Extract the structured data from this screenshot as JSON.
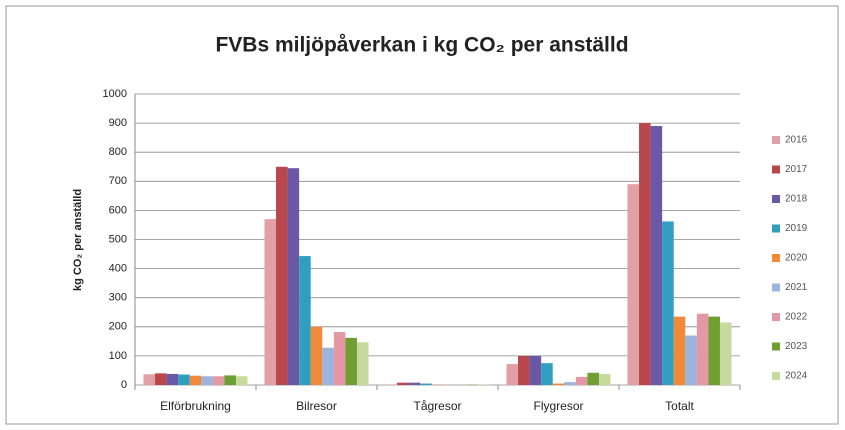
{
  "chart_data": {
    "type": "bar",
    "title": "FVBs miljöpåverkan i kg CO₂ per anställd",
    "y_label": "kg CO₂ per anställd",
    "categories": [
      "Elförbrukning",
      "Bilresor",
      "Tågresor",
      "Flygresor",
      "Totalt"
    ],
    "series": [
      {
        "name": "2016",
        "color": "#e0a0a6",
        "values": [
          37,
          570,
          2,
          72,
          690
        ]
      },
      {
        "name": "2017",
        "color": "#b9474b",
        "values": [
          40,
          750,
          8,
          100,
          900
        ]
      },
      {
        "name": "2018",
        "color": "#6a58a6",
        "values": [
          38,
          745,
          8,
          100,
          890
        ]
      },
      {
        "name": "2019",
        "color": "#2f9ebf",
        "values": [
          36,
          443,
          5,
          75,
          562
        ]
      },
      {
        "name": "2020",
        "color": "#f08a3a",
        "values": [
          32,
          200,
          1,
          5,
          235
        ]
      },
      {
        "name": "2021",
        "color": "#9ab4dc",
        "values": [
          30,
          128,
          1,
          10,
          170
        ]
      },
      {
        "name": "2022",
        "color": "#e497a4",
        "values": [
          30,
          182,
          1,
          28,
          245
        ]
      },
      {
        "name": "2023",
        "color": "#6f9e32",
        "values": [
          33,
          162,
          1,
          42,
          235
        ]
      },
      {
        "name": "2024",
        "color": "#c6da9e",
        "values": [
          30,
          147,
          1,
          38,
          215
        ]
      }
    ],
    "ylim": [
      0,
      1000
    ],
    "yticks": [
      0,
      100,
      200,
      300,
      400,
      500,
      600,
      700,
      800,
      900,
      1000
    ],
    "grid": true,
    "legend": "right"
  }
}
